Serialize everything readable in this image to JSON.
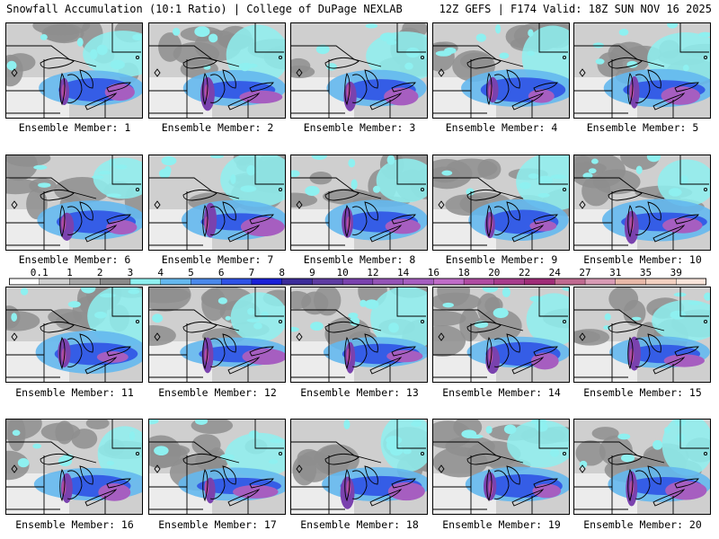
{
  "header": {
    "left": "Snowfall Accumulation (10:1 Ratio) | College of DuPage NEXLAB",
    "right": "12Z GEFS | F174 Valid: 18Z SUN NOV 16 2025"
  },
  "label_prefix": "Ensemble Member: ",
  "members": [
    {
      "number": 1
    },
    {
      "number": 2
    },
    {
      "number": 3
    },
    {
      "number": 4
    },
    {
      "number": 5
    },
    {
      "number": 6
    },
    {
      "number": 7
    },
    {
      "number": 8
    },
    {
      "number": 9
    },
    {
      "number": 10
    },
    {
      "number": 11
    },
    {
      "number": 12
    },
    {
      "number": 13
    },
    {
      "number": 14
    },
    {
      "number": 15
    },
    {
      "number": 16
    },
    {
      "number": 17
    },
    {
      "number": 18
    },
    {
      "number": 19
    },
    {
      "number": 20
    }
  ],
  "colorbar": {
    "labels": [
      "0.1",
      "1",
      "2",
      "3",
      "4",
      "5",
      "6",
      "7",
      "8",
      "9",
      "10",
      "12",
      "14",
      "16",
      "18",
      "20",
      "22",
      "24",
      "27",
      "31",
      "35",
      "39"
    ],
    "colors": [
      "#ffffff",
      "#d0d0d0",
      "#a8a8a8",
      "#8a8a8a",
      "#8ef0f0",
      "#64b8ee",
      "#4a88ea",
      "#2f53e6",
      "#1a20d8",
      "#3c2c9a",
      "#5e3ca2",
      "#7a42ae",
      "#9454b6",
      "#a65ec0",
      "#c06cc8",
      "#b04ca2",
      "#a83c8c",
      "#a02c78",
      "#c06a90",
      "#d89ab4",
      "#e8b8a8",
      "#f2d0c0",
      "#f8e4da"
    ]
  }
}
